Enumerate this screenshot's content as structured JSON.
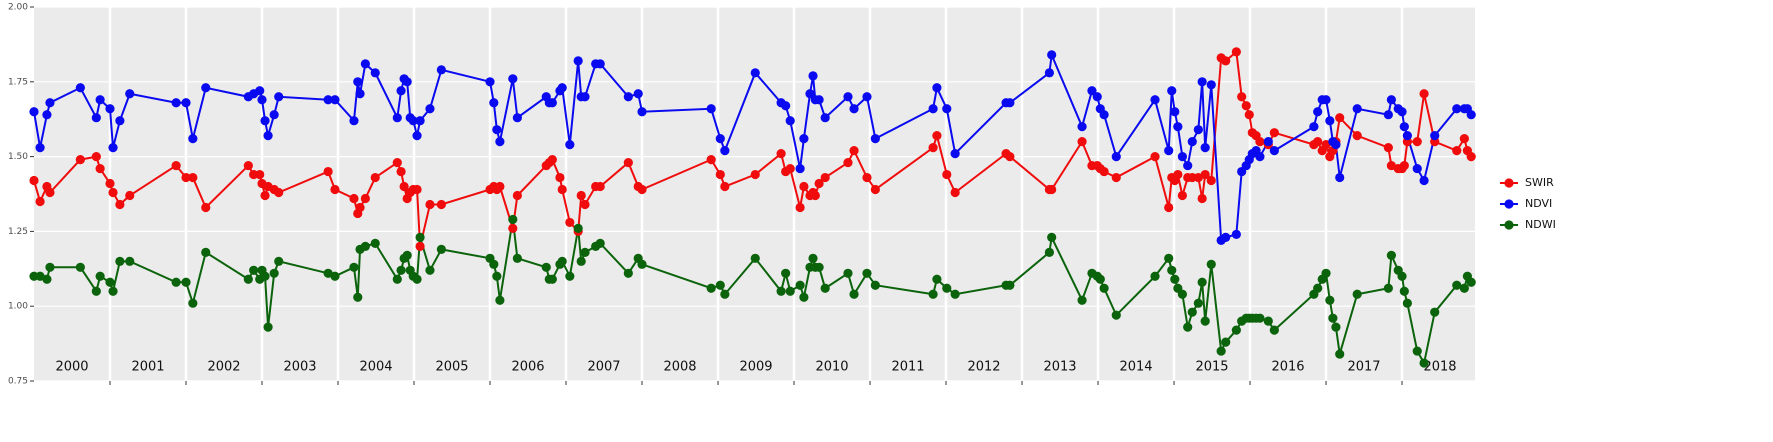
{
  "chart_data": {
    "type": "line",
    "x": [
      2000.0,
      2000.08,
      2000.17,
      2000.21,
      2000.61,
      2000.82,
      2000.87,
      2001.0,
      2001.04,
      2001.13,
      2001.26,
      2001.87,
      2002.0,
      2002.09,
      2002.26,
      2002.82,
      2002.89,
      2002.97,
      2003.0,
      2003.04,
      2003.08,
      2003.16,
      2003.22,
      2003.87,
      2003.96,
      2004.21,
      2004.26,
      2004.29,
      2004.36,
      2004.49,
      2004.78,
      2004.83,
      2004.87,
      2004.91,
      2004.95,
      2004.99,
      2005.04,
      2005.08,
      2005.21,
      2005.36,
      2006.0,
      2006.05,
      2006.09,
      2006.13,
      2006.3,
      2006.36,
      2006.74,
      2006.78,
      2006.82,
      2006.92,
      2006.95,
      2007.05,
      2007.16,
      2007.2,
      2007.25,
      2007.39,
      2007.45,
      2007.82,
      2007.95,
      2008.0,
      2008.91,
      2009.03,
      2009.09,
      2009.49,
      2009.83,
      2009.89,
      2009.95,
      2010.08,
      2010.13,
      2010.21,
      2010.25,
      2010.28,
      2010.33,
      2010.41,
      2010.71,
      2010.79,
      2010.96,
      2011.07,
      2011.83,
      2011.88,
      2012.01,
      2012.12,
      2012.79,
      2012.84,
      2013.36,
      2013.39,
      2013.79,
      2013.92,
      2013.99,
      2014.03,
      2014.08,
      2014.24,
      2014.75,
      2014.93,
      2014.97,
      2015.01,
      2015.05,
      2015.11,
      2015.18,
      2015.24,
      2015.32,
      2015.37,
      2015.41,
      2015.49,
      2015.62,
      2015.68,
      2015.82,
      2015.89,
      2015.95,
      2015.99,
      2016.03,
      2016.08,
      2016.13,
      2016.24,
      2016.32,
      2016.84,
      2016.89,
      2016.95,
      2017.0,
      2017.05,
      2017.09,
      2017.13,
      2017.18,
      2017.41,
      2017.82,
      2017.86,
      2017.95,
      2018.0,
      2018.03,
      2018.07,
      2018.2,
      2018.29,
      2018.43,
      2018.72,
      2018.82,
      2018.86,
      2018.91
    ],
    "series": [
      {
        "name": "SWIR",
        "color": "#f00c0c",
        "values": [
          1.42,
          1.35,
          1.4,
          1.38,
          1.49,
          1.5,
          1.46,
          1.41,
          1.38,
          1.34,
          1.37,
          1.47,
          1.43,
          1.43,
          1.33,
          1.47,
          1.44,
          1.44,
          1.41,
          1.37,
          1.4,
          1.39,
          1.38,
          1.45,
          1.39,
          1.36,
          1.31,
          1.33,
          1.36,
          1.43,
          1.48,
          1.45,
          1.4,
          1.36,
          1.38,
          1.39,
          1.39,
          1.2,
          1.34,
          1.34,
          1.39,
          1.4,
          1.39,
          1.4,
          1.26,
          1.37,
          1.47,
          1.48,
          1.49,
          1.43,
          1.39,
          1.28,
          1.25,
          1.37,
          1.34,
          1.4,
          1.4,
          1.48,
          1.4,
          1.39,
          1.49,
          1.44,
          1.4,
          1.44,
          1.51,
          1.45,
          1.46,
          1.33,
          1.4,
          1.37,
          1.38,
          1.37,
          1.41,
          1.43,
          1.48,
          1.52,
          1.43,
          1.39,
          1.53,
          1.57,
          1.44,
          1.38,
          1.51,
          1.5,
          1.39,
          1.39,
          1.55,
          1.47,
          1.47,
          1.46,
          1.45,
          1.43,
          1.5,
          1.33,
          1.43,
          1.42,
          1.44,
          1.37,
          1.43,
          1.43,
          1.43,
          1.36,
          1.44,
          1.42,
          1.83,
          1.82,
          1.85,
          1.7,
          1.67,
          1.64,
          1.58,
          1.57,
          1.55,
          1.54,
          1.58,
          1.54,
          1.55,
          1.52,
          1.54,
          1.5,
          1.52,
          1.55,
          1.63,
          1.57,
          1.53,
          1.47,
          1.46,
          1.46,
          1.47,
          1.55,
          1.55,
          1.71,
          1.55,
          1.52,
          1.56,
          1.52,
          1.5
        ]
      },
      {
        "name": "NDVI",
        "color": "#0a0af0",
        "values": [
          1.65,
          1.53,
          1.64,
          1.68,
          1.73,
          1.63,
          1.69,
          1.66,
          1.53,
          1.62,
          1.71,
          1.68,
          1.68,
          1.56,
          1.73,
          1.7,
          1.71,
          1.72,
          1.69,
          1.62,
          1.57,
          1.64,
          1.7,
          1.69,
          1.69,
          1.62,
          1.75,
          1.71,
          1.81,
          1.78,
          1.63,
          1.72,
          1.76,
          1.75,
          1.63,
          1.62,
          1.57,
          1.62,
          1.66,
          1.79,
          1.75,
          1.68,
          1.59,
          1.55,
          1.76,
          1.63,
          1.7,
          1.68,
          1.68,
          1.72,
          1.73,
          1.54,
          1.82,
          1.7,
          1.7,
          1.81,
          1.81,
          1.7,
          1.71,
          1.65,
          1.66,
          1.56,
          1.52,
          1.78,
          1.68,
          1.67,
          1.62,
          1.46,
          1.56,
          1.71,
          1.77,
          1.69,
          1.69,
          1.63,
          1.7,
          1.66,
          1.7,
          1.56,
          1.66,
          1.73,
          1.66,
          1.51,
          1.68,
          1.68,
          1.78,
          1.84,
          1.6,
          1.72,
          1.7,
          1.66,
          1.64,
          1.5,
          1.69,
          1.52,
          1.72,
          1.65,
          1.6,
          1.5,
          1.47,
          1.55,
          1.59,
          1.75,
          1.53,
          1.74,
          1.22,
          1.23,
          1.24,
          1.45,
          1.47,
          1.49,
          1.51,
          1.52,
          1.5,
          1.55,
          1.52,
          1.6,
          1.65,
          1.69,
          1.69,
          1.62,
          1.55,
          1.54,
          1.43,
          1.66,
          1.64,
          1.69,
          1.66,
          1.65,
          1.6,
          1.57,
          1.46,
          1.42,
          1.57,
          1.66,
          1.66,
          1.66,
          1.64
        ]
      },
      {
        "name": "NDWI",
        "color": "#0b630b",
        "values": [
          1.1,
          1.1,
          1.09,
          1.13,
          1.13,
          1.05,
          1.1,
          1.08,
          1.05,
          1.15,
          1.15,
          1.08,
          1.08,
          1.01,
          1.18,
          1.09,
          1.12,
          1.09,
          1.12,
          1.1,
          0.93,
          1.11,
          1.15,
          1.11,
          1.1,
          1.13,
          1.03,
          1.19,
          1.2,
          1.21,
          1.09,
          1.12,
          1.16,
          1.17,
          1.12,
          1.1,
          1.09,
          1.23,
          1.12,
          1.19,
          1.16,
          1.14,
          1.1,
          1.02,
          1.29,
          1.16,
          1.13,
          1.09,
          1.09,
          1.14,
          1.15,
          1.1,
          1.26,
          1.15,
          1.18,
          1.2,
          1.21,
          1.11,
          1.16,
          1.14,
          1.06,
          1.07,
          1.04,
          1.16,
          1.05,
          1.11,
          1.05,
          1.07,
          1.03,
          1.13,
          1.16,
          1.13,
          1.13,
          1.06,
          1.11,
          1.04,
          1.11,
          1.07,
          1.04,
          1.09,
          1.06,
          1.04,
          1.07,
          1.07,
          1.18,
          1.23,
          1.02,
          1.11,
          1.1,
          1.09,
          1.06,
          0.97,
          1.1,
          1.16,
          1.12,
          1.09,
          1.06,
          1.04,
          0.93,
          0.98,
          1.01,
          1.08,
          0.95,
          1.14,
          0.85,
          0.88,
          0.92,
          0.95,
          0.96,
          0.96,
          0.96,
          0.96,
          0.96,
          0.95,
          0.92,
          1.04,
          1.06,
          1.09,
          1.11,
          1.02,
          0.96,
          0.93,
          0.84,
          1.04,
          1.06,
          1.17,
          1.12,
          1.1,
          1.05,
          1.01,
          0.85,
          0.81,
          0.98,
          1.07,
          1.06,
          1.1,
          1.08
        ]
      }
    ],
    "xlim": [
      2000,
      2018.96
    ],
    "xticks": [
      2001,
      2002,
      2003,
      2004,
      2005,
      2006,
      2007,
      2008,
      2009,
      2010,
      2011,
      2012,
      2013,
      2014,
      2015,
      2016,
      2017,
      2018
    ],
    "year_labels": [
      {
        "value": 2000.5,
        "label": "2000"
      },
      {
        "value": 2001.5,
        "label": "2001"
      },
      {
        "value": 2002.5,
        "label": "2002"
      },
      {
        "value": 2003.5,
        "label": "2003"
      },
      {
        "value": 2004.5,
        "label": "2004"
      },
      {
        "value": 2005.5,
        "label": "2005"
      },
      {
        "value": 2006.5,
        "label": "2006"
      },
      {
        "value": 2007.5,
        "label": "2007"
      },
      {
        "value": 2008.5,
        "label": "2008"
      },
      {
        "value": 2009.5,
        "label": "2009"
      },
      {
        "value": 2010.5,
        "label": "2010"
      },
      {
        "value": 2011.5,
        "label": "2011"
      },
      {
        "value": 2012.5,
        "label": "2012"
      },
      {
        "value": 2013.5,
        "label": "2013"
      },
      {
        "value": 2014.5,
        "label": "2014"
      },
      {
        "value": 2015.5,
        "label": "2015"
      },
      {
        "value": 2016.5,
        "label": "2016"
      },
      {
        "value": 2017.5,
        "label": "2017"
      },
      {
        "value": 2018.5,
        "label": "2018"
      }
    ],
    "ylim": [
      0.75,
      2.0
    ],
    "yticks": [
      {
        "value": 0.75,
        "label": "0.75"
      },
      {
        "value": 1.0,
        "label": "1.00"
      },
      {
        "value": 1.25,
        "label": "1.25"
      },
      {
        "value": 1.5,
        "label": "1.50"
      },
      {
        "value": 1.75,
        "label": "1.75"
      },
      {
        "value": 2.0,
        "label": "2.00"
      }
    ],
    "grid": true,
    "legend": "right"
  }
}
